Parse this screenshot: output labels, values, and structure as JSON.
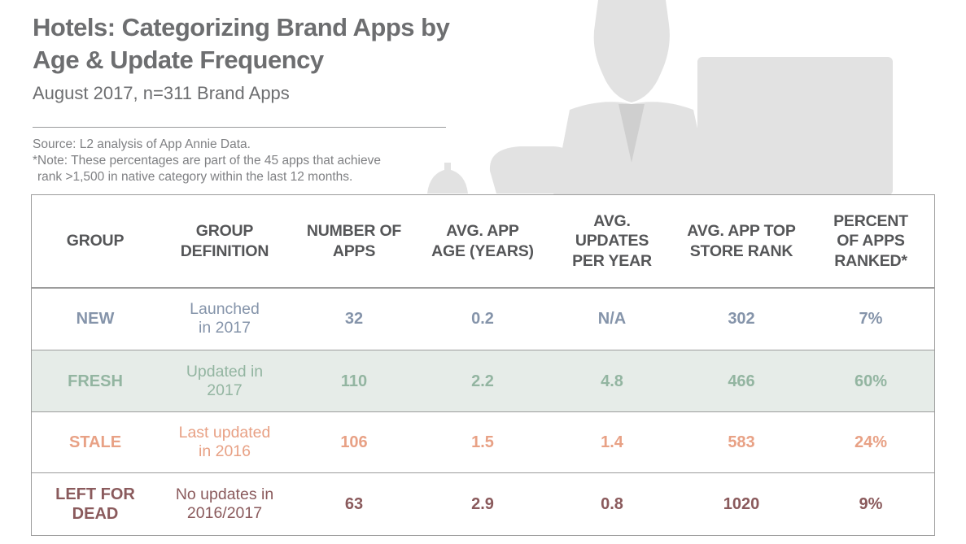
{
  "title": "Hotels: Categorizing Brand Apps by Age & Update Frequency",
  "subtitle": "August 2017, n=311 Brand Apps",
  "source": "Source: L2 analysis of App Annie Data.",
  "note_line1": "*Note: These percentages are part of the 45 apps that achieve",
  "note_line2": "rank >1,500 in native category within the last 12 months.",
  "table": {
    "headers": [
      "GROUP",
      "GROUP DEFINITION",
      "NUMBER OF APPS",
      "AVG. APP AGE (YEARS)",
      "AVG. UPDATES PER YEAR",
      "AVG. APP TOP STORE RANK",
      "PERCENT OF APPS RANKED*"
    ],
    "rows": [
      {
        "group": "NEW",
        "definition": "Launched in 2017",
        "apps": "32",
        "age": "0.2",
        "updates": "N/A",
        "rank": "302",
        "percent": "7%",
        "color": "#8594aa"
      },
      {
        "group": "FRESH",
        "definition": "Updated in 2017",
        "apps": "110",
        "age": "2.2",
        "updates": "4.8",
        "rank": "466",
        "percent": "60%",
        "color": "#93b5a1"
      },
      {
        "group": "STALE",
        "definition": "Last updated in 2016",
        "apps": "106",
        "age": "1.5",
        "updates": "1.4",
        "rank": "583",
        "percent": "24%",
        "color": "#e8a185"
      },
      {
        "group": "LEFT FOR DEAD",
        "definition": "No updates in 2016/2017",
        "apps": "63",
        "age": "2.9",
        "updates": "0.8",
        "rank": "1020",
        "percent": "9%",
        "color": "#8a5a5c"
      }
    ]
  },
  "colors": {
    "heading": "#6d6e70",
    "fresh_row_bg": "#e6ece8",
    "illustration": "#e3e3e3"
  }
}
